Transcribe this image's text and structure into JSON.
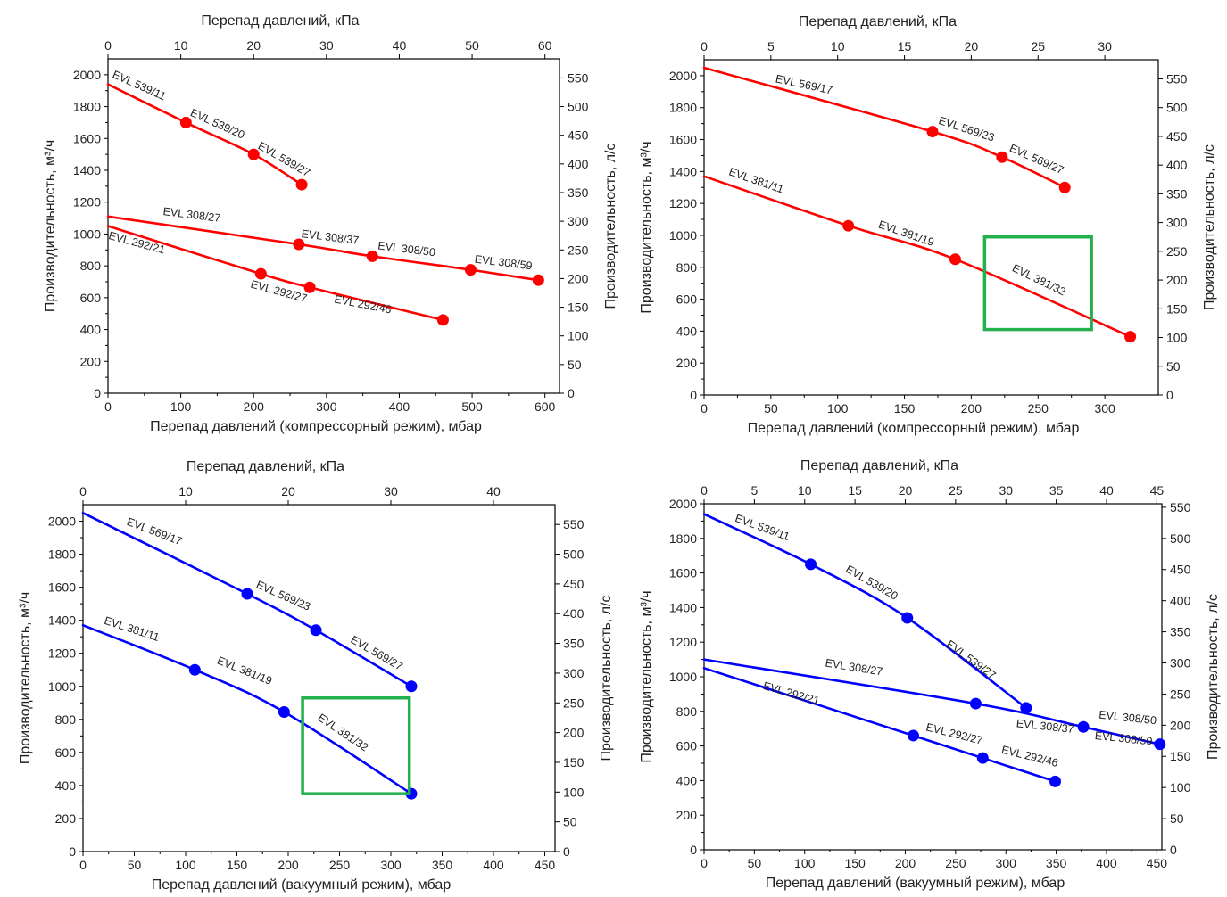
{
  "chart_data": [
    {
      "type": "line",
      "color": "#ff0000",
      "xlabel": "Перепад давлений (компрессорный режим), мбар",
      "x2label": "Перепад давлений, кПа",
      "ylabel": "Производительность, м³/ч",
      "y2label": "Производительность, л/с",
      "xlim": [
        0,
        620
      ],
      "ylim": [
        0,
        2100
      ],
      "x2lim": [
        0,
        62
      ],
      "y2lim": [
        0,
        583.3
      ],
      "xticks": [
        0,
        100,
        200,
        300,
        400,
        500,
        600
      ],
      "yticks": [
        0,
        200,
        400,
        600,
        800,
        1000,
        1200,
        1400,
        1600,
        1800,
        2000
      ],
      "x2ticks": [
        0,
        10,
        20,
        30,
        40,
        50,
        60
      ],
      "y2ticks": [
        0,
        50,
        100,
        150,
        200,
        250,
        300,
        350,
        400,
        450,
        500,
        550
      ],
      "series": [
        {
          "name": "EVL 539",
          "x": [
            0,
            107,
            200,
            266
          ],
          "y": [
            1940,
            1700,
            1500,
            1310
          ]
        },
        {
          "name": "EVL 308",
          "x": [
            0,
            262,
            363,
            498,
            591
          ],
          "y": [
            1110,
            935,
            860,
            775,
            710
          ]
        },
        {
          "name": "EVL 292",
          "x": [
            0,
            210,
            277,
            460
          ],
          "y": [
            1050,
            750,
            665,
            460
          ]
        }
      ],
      "markers": [
        {
          "x": 107,
          "y": 1700
        },
        {
          "x": 200,
          "y": 1500
        },
        {
          "x": 266,
          "y": 1310
        },
        {
          "x": 262,
          "y": 935
        },
        {
          "x": 363,
          "y": 860
        },
        {
          "x": 498,
          "y": 775
        },
        {
          "x": 591,
          "y": 710
        },
        {
          "x": 210,
          "y": 750
        },
        {
          "x": 277,
          "y": 665
        },
        {
          "x": 460,
          "y": 460
        }
      ],
      "annotations": [
        {
          "text": "EVL 539/11",
          "x": 5,
          "y": 1985,
          "angle": 24
        },
        {
          "text": "EVL 539/20",
          "x": 112,
          "y": 1745,
          "angle": 24
        },
        {
          "text": "EVL 539/27",
          "x": 205,
          "y": 1540,
          "angle": 30
        },
        {
          "text": "EVL 308/27",
          "x": 75,
          "y": 1120,
          "angle": 7
        },
        {
          "text": "EVL 308/37",
          "x": 265,
          "y": 980,
          "angle": 7
        },
        {
          "text": "EVL 308/50",
          "x": 370,
          "y": 905,
          "angle": 7
        },
        {
          "text": "EVL 308/59",
          "x": 503,
          "y": 820,
          "angle": 7
        },
        {
          "text": "EVL 292/21",
          "x": 0,
          "y": 970,
          "angle": 15
        },
        {
          "text": "EVL 292/27",
          "x": 195,
          "y": 665,
          "angle": 15
        },
        {
          "text": "EVL 292/46",
          "x": 310,
          "y": 570,
          "angle": 11
        }
      ]
    },
    {
      "type": "line",
      "color": "#ff0000",
      "xlabel": "Перепад давлений (компрессорный режим), мбар",
      "x2label": "Перепад давлений, кПа",
      "ylabel": "Производительность, м³/ч",
      "y2label": "Производительность, л/с",
      "xlim": [
        0,
        340
      ],
      "ylim": [
        0,
        2100
      ],
      "x2lim": [
        0,
        34
      ],
      "y2lim": [
        0,
        583.3
      ],
      "xticks": [
        0,
        50,
        100,
        150,
        200,
        250,
        300
      ],
      "yticks": [
        0,
        200,
        400,
        600,
        800,
        1000,
        1200,
        1400,
        1600,
        1800,
        2000
      ],
      "x2ticks": [
        0,
        5,
        10,
        15,
        20,
        25,
        30
      ],
      "y2ticks": [
        0,
        50,
        100,
        150,
        200,
        250,
        300,
        350,
        400,
        450,
        500,
        550
      ],
      "highlight": {
        "x": [
          210,
          290
        ],
        "y": [
          410,
          990
        ],
        "color": "#22b14c"
      },
      "series": [
        {
          "name": "EVL 569",
          "x": [
            0,
            171,
            223,
            270
          ],
          "y": [
            2050,
            1650,
            1490,
            1300
          ]
        },
        {
          "name": "EVL 381",
          "x": [
            0,
            108,
            188,
            319
          ],
          "y": [
            1370,
            1060,
            850,
            365
          ]
        }
      ],
      "markers": [
        {
          "x": 171,
          "y": 1650
        },
        {
          "x": 223,
          "y": 1490
        },
        {
          "x": 270,
          "y": 1300
        },
        {
          "x": 108,
          "y": 1060
        },
        {
          "x": 188,
          "y": 850
        },
        {
          "x": 319,
          "y": 365
        }
      ],
      "annotations": [
        {
          "text": "EVL 569/17",
          "x": 53,
          "y": 1960,
          "angle": 12
        },
        {
          "text": "EVL 569/23",
          "x": 175,
          "y": 1700,
          "angle": 18
        },
        {
          "text": "EVL 569/27",
          "x": 228,
          "y": 1530,
          "angle": 24
        },
        {
          "text": "EVL 381/11",
          "x": 18,
          "y": 1380,
          "angle": 19
        },
        {
          "text": "EVL 381/19",
          "x": 130,
          "y": 1050,
          "angle": 19
        },
        {
          "text": "EVL 381/32",
          "x": 230,
          "y": 780,
          "angle": 26
        }
      ]
    },
    {
      "type": "line",
      "color": "#0000ff",
      "xlabel": "Перепад давлений (вакуумный режим), мбар",
      "x2label": "Перепад давлений, кПа",
      "ylabel": "Производительность, м³/ч",
      "y2label": "Производительность, л/с",
      "xlim": [
        0,
        460
      ],
      "ylim": [
        0,
        2100
      ],
      "x2lim": [
        0,
        46
      ],
      "y2lim": [
        0,
        583.3
      ],
      "xticks": [
        0,
        50,
        100,
        150,
        200,
        250,
        300,
        350,
        400,
        450
      ],
      "yticks": [
        0,
        200,
        400,
        600,
        800,
        1000,
        1200,
        1400,
        1600,
        1800,
        2000
      ],
      "x2ticks": [
        0,
        10,
        20,
        30,
        40
      ],
      "y2ticks": [
        0,
        50,
        100,
        150,
        200,
        250,
        300,
        350,
        400,
        450,
        500,
        550
      ],
      "highlight": {
        "x": [
          214,
          318
        ],
        "y": [
          350,
          930
        ],
        "color": "#22b14c"
      },
      "series": [
        {
          "name": "EVL 569",
          "x": [
            0,
            160,
            227,
            320
          ],
          "y": [
            2050,
            1560,
            1340,
            1000
          ]
        },
        {
          "name": "EVL 381",
          "x": [
            0,
            109,
            196,
            320
          ],
          "y": [
            1370,
            1100,
            845,
            350
          ]
        }
      ],
      "markers": [
        {
          "x": 160,
          "y": 1560
        },
        {
          "x": 227,
          "y": 1340
        },
        {
          "x": 320,
          "y": 1000
        },
        {
          "x": 109,
          "y": 1100
        },
        {
          "x": 196,
          "y": 845
        },
        {
          "x": 320,
          "y": 350
        }
      ],
      "annotations": [
        {
          "text": "EVL 569/17",
          "x": 42,
          "y": 1980,
          "angle": 21
        },
        {
          "text": "EVL 569/23",
          "x": 168,
          "y": 1600,
          "angle": 24
        },
        {
          "text": "EVL 569/27",
          "x": 260,
          "y": 1270,
          "angle": 30
        },
        {
          "text": "EVL 381/11",
          "x": 20,
          "y": 1380,
          "angle": 18
        },
        {
          "text": "EVL 381/19",
          "x": 130,
          "y": 1140,
          "angle": 22
        },
        {
          "text": "EVL 381/32",
          "x": 228,
          "y": 800,
          "angle": 34
        }
      ]
    },
    {
      "type": "line",
      "color": "#0000ff",
      "xlabel": "Перепад давлений (вакуумный режим), мбар",
      "x2label": "Перепад давлений, кПа",
      "ylabel": "Производительность, м³/ч",
      "y2label": "Производительность, л/с",
      "xlim": [
        0,
        455
      ],
      "ylim": [
        0,
        2000
      ],
      "x2lim": [
        0,
        45.5
      ],
      "y2lim": [
        0,
        555.6
      ],
      "xticks": [
        0,
        50,
        100,
        150,
        200,
        250,
        300,
        350,
        400,
        450
      ],
      "yticks": [
        0,
        200,
        400,
        600,
        800,
        1000,
        1200,
        1400,
        1600,
        1800,
        2000
      ],
      "x2ticks": [
        0,
        5,
        10,
        15,
        20,
        25,
        30,
        35,
        40,
        45
      ],
      "y2ticks": [
        0,
        50,
        100,
        150,
        200,
        250,
        300,
        350,
        400,
        450,
        500,
        550
      ],
      "series": [
        {
          "name": "EVL 539",
          "x": [
            0,
            106,
            202,
            320
          ],
          "y": [
            1940,
            1650,
            1340,
            820
          ]
        },
        {
          "name": "EVL 308",
          "x": [
            0,
            270,
            377,
            453
          ],
          "y": [
            1100,
            845,
            710,
            610
          ]
        },
        {
          "name": "EVL 292",
          "x": [
            0,
            208,
            277,
            349
          ],
          "y": [
            1050,
            660,
            530,
            395
          ]
        }
      ],
      "markers": [
        {
          "x": 106,
          "y": 1650
        },
        {
          "x": 202,
          "y": 1340
        },
        {
          "x": 320,
          "y": 820
        },
        {
          "x": 270,
          "y": 845
        },
        {
          "x": 377,
          "y": 710
        },
        {
          "x": 453,
          "y": 610
        },
        {
          "x": 208,
          "y": 660
        },
        {
          "x": 277,
          "y": 530
        },
        {
          "x": 349,
          "y": 395
        }
      ],
      "annotations": [
        {
          "text": "EVL 539/11",
          "x": 30,
          "y": 1900,
          "angle": 20
        },
        {
          "text": "EVL 539/20",
          "x": 140,
          "y": 1610,
          "angle": 30
        },
        {
          "text": "EVL 539/27",
          "x": 240,
          "y": 1180,
          "angle": 36
        },
        {
          "text": "EVL 308/27",
          "x": 120,
          "y": 1060,
          "angle": 9
        },
        {
          "text": "EVL 292/21",
          "x": 58,
          "y": 930,
          "angle": 16
        },
        {
          "text": "EVL 292/27",
          "x": 220,
          "y": 690,
          "angle": 14
        },
        {
          "text": "EVL 292/46",
          "x": 295,
          "y": 560,
          "angle": 14
        },
        {
          "text": "EVL 308/37",
          "x": 310,
          "y": 710,
          "angle": 6
        },
        {
          "text": "EVL 308/50",
          "x": 392,
          "y": 760,
          "angle": 6
        },
        {
          "text": "EVL 308/59",
          "x": 388,
          "y": 640,
          "angle": 6
        }
      ]
    }
  ]
}
